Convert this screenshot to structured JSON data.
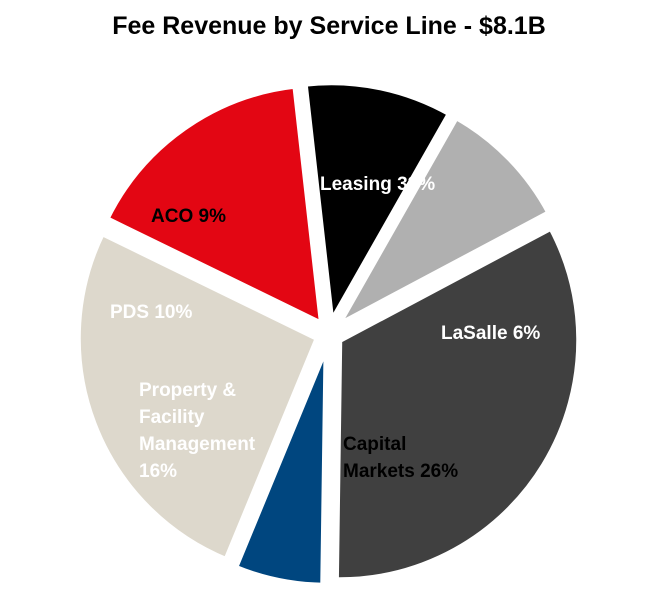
{
  "chart_data": {
    "type": "pie",
    "title": "Fee Revenue by Service Line - $8.1B",
    "slices": [
      {
        "label": [
          "Leasing 33%"
        ],
        "value": 33,
        "color": "#404040",
        "text_color": "#ffffff",
        "exploded": true
      },
      {
        "label": [
          "LaSalle 6%"
        ],
        "value": 6,
        "color": "#00467f",
        "text_color": "#ffffff",
        "exploded": true
      },
      {
        "label": [
          "Capital",
          "Markets 26%"
        ],
        "value": 26,
        "color": "#ddd8cc",
        "text_color": "#000000",
        "exploded": true
      },
      {
        "label": [
          "Property &",
          "Facility",
          "Management",
          "16%"
        ],
        "value": 16,
        "color": "#e30613",
        "text_color": "#ffffff",
        "exploded": true
      },
      {
        "label": [
          "PDS 10%"
        ],
        "value": 10,
        "color": "#000000",
        "text_color": "#ffffff",
        "exploded": true
      },
      {
        "label": [
          "ACO 9%"
        ],
        "value": 9,
        "color": "#b0b0b0",
        "text_color": "#000000",
        "exploded": true
      }
    ]
  }
}
